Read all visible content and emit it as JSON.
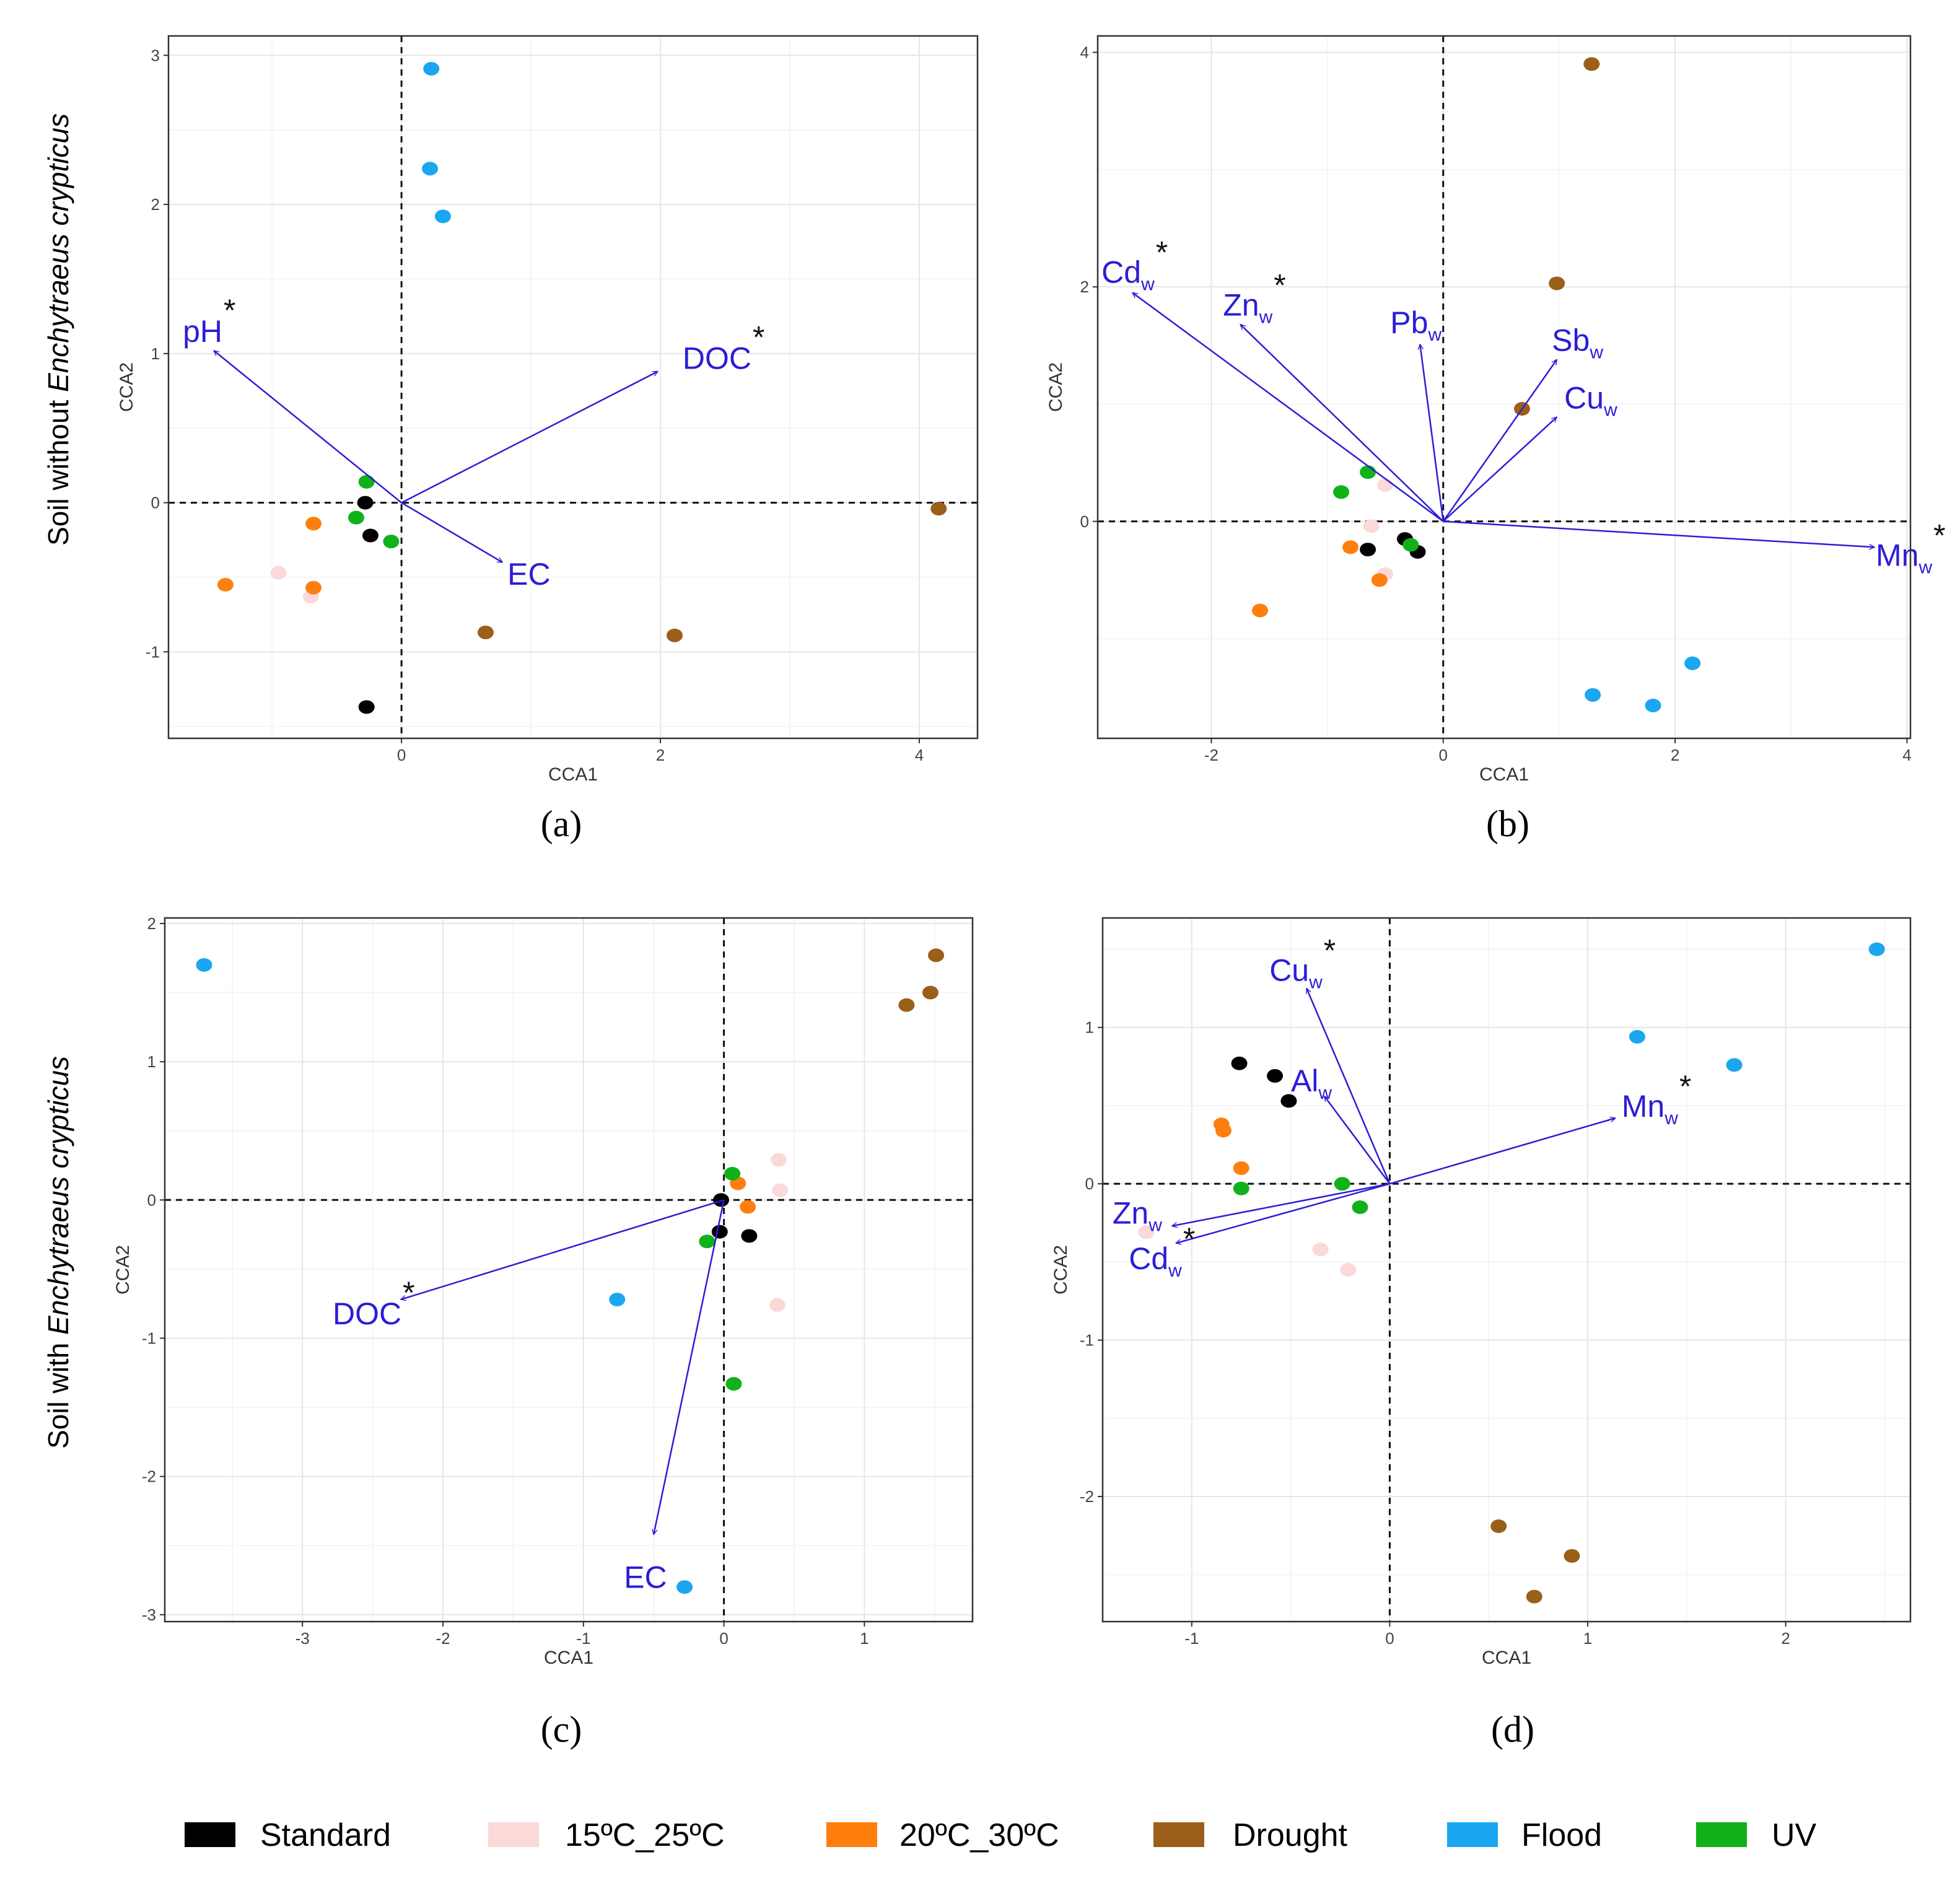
{
  "row_labels": {
    "top": {
      "prefix": "Soil without ",
      "species": "Enchytraeus crypticus"
    },
    "bottom": {
      "prefix": "Soil with ",
      "species": "Enchytraeus crypticus"
    }
  },
  "legend": [
    {
      "label": "Standard",
      "color": "#000000"
    },
    {
      "label": "15ºC_25ºC",
      "color": "#fbd9d9"
    },
    {
      "label": "20ºC_30ºC",
      "color": "#ff7f0e"
    },
    {
      "label": "Drought",
      "color": "#9b5f1a"
    },
    {
      "label": "Flood",
      "color": "#1aa7f0"
    },
    {
      "label": "UV",
      "color": "#11b11a"
    }
  ],
  "chart_data": [
    {
      "panel": "(a)",
      "type": "scatter",
      "title": "",
      "xlabel": "CCA1",
      "ylabel": "CCA2",
      "xlim": [
        -1.8,
        4.45
      ],
      "ylim": [
        -1.58,
        3.13
      ],
      "xticks": [
        "0",
        "2",
        "4"
      ],
      "xtick_values": [
        0,
        2,
        4
      ],
      "yticks": [
        "-1",
        "0",
        "1",
        "2",
        "3"
      ],
      "ytick_values": [
        -1,
        0,
        1,
        2,
        3
      ],
      "points": [
        {
          "group": "Standard",
          "x": -0.28,
          "y": 0.0
        },
        {
          "group": "Standard",
          "x": -0.24,
          "y": -0.22
        },
        {
          "group": "Standard",
          "x": -0.27,
          "y": -1.37
        },
        {
          "group": "15ºC_25ºC",
          "x": -0.95,
          "y": -0.47
        },
        {
          "group": "15ºC_25ºC",
          "x": -0.7,
          "y": -0.63
        },
        {
          "group": "20ºC_30ºC",
          "x": -1.36,
          "y": -0.55
        },
        {
          "group": "20ºC_30ºC",
          "x": -0.68,
          "y": -0.57
        },
        {
          "group": "20ºC_30ºC",
          "x": -0.68,
          "y": -0.14
        },
        {
          "group": "Drought",
          "x": 0.65,
          "y": -0.87
        },
        {
          "group": "Drought",
          "x": 2.11,
          "y": -0.89
        },
        {
          "group": "Drought",
          "x": 4.15,
          "y": -0.04
        },
        {
          "group": "Flood",
          "x": 0.23,
          "y": 2.91
        },
        {
          "group": "Flood",
          "x": 0.22,
          "y": 2.24
        },
        {
          "group": "Flood",
          "x": 0.32,
          "y": 1.92
        },
        {
          "group": "UV",
          "x": -0.27,
          "y": 0.14
        },
        {
          "group": "UV",
          "x": -0.35,
          "y": -0.1
        },
        {
          "group": "UV",
          "x": -0.08,
          "y": -0.26
        }
      ],
      "vectors": [
        {
          "label": "pH",
          "sub": "",
          "star": true,
          "x": -1.45,
          "y": 1.02
        },
        {
          "label": "DOC",
          "sub": "",
          "star": true,
          "x": 1.98,
          "y": 0.88
        },
        {
          "label": "EC",
          "sub": "",
          "star": false,
          "x": 0.78,
          "y": -0.4
        }
      ]
    },
    {
      "panel": "(b)",
      "type": "scatter",
      "title": "",
      "xlabel": "CCA1",
      "ylabel": "CCA2",
      "xlim": [
        -2.98,
        4.03
      ],
      "ylim": [
        -1.85,
        4.14
      ],
      "xticks": [
        "-2",
        "0",
        "2",
        "4"
      ],
      "xtick_values": [
        -2,
        0,
        2,
        4
      ],
      "yticks": [
        "0",
        "2",
        "4"
      ],
      "ytick_values": [
        0,
        2,
        4
      ],
      "points": [
        {
          "group": "Standard",
          "x": -0.65,
          "y": -0.24
        },
        {
          "group": "Standard",
          "x": -0.33,
          "y": -0.15
        },
        {
          "group": "Standard",
          "x": -0.22,
          "y": -0.26
        },
        {
          "group": "15ºC_25ºC",
          "x": -0.62,
          "y": -0.04
        },
        {
          "group": "15ºC_25ºC",
          "x": -0.5,
          "y": -0.45
        },
        {
          "group": "15ºC_25ºC",
          "x": -0.5,
          "y": 0.31
        },
        {
          "group": "20ºC_30ºC",
          "x": -0.8,
          "y": -0.22
        },
        {
          "group": "20ºC_30ºC",
          "x": -0.55,
          "y": -0.5
        },
        {
          "group": "20ºC_30ºC",
          "x": -1.58,
          "y": -0.76
        },
        {
          "group": "Drought",
          "x": 1.28,
          "y": 3.9
        },
        {
          "group": "Drought",
          "x": 0.98,
          "y": 2.03
        },
        {
          "group": "Drought",
          "x": 0.68,
          "y": 0.96
        },
        {
          "group": "Flood",
          "x": 1.29,
          "y": -1.48
        },
        {
          "group": "Flood",
          "x": 1.81,
          "y": -1.57
        },
        {
          "group": "Flood",
          "x": 2.15,
          "y": -1.21
        },
        {
          "group": "UV",
          "x": -0.65,
          "y": 0.42
        },
        {
          "group": "UV",
          "x": -0.88,
          "y": 0.25
        },
        {
          "group": "UV",
          "x": -0.28,
          "y": -0.2
        }
      ],
      "vectors": [
        {
          "label": "Cd",
          "sub": "w",
          "star": true,
          "x": -2.68,
          "y": 1.95
        },
        {
          "label": "Zn",
          "sub": "w",
          "star": true,
          "x": -1.75,
          "y": 1.68
        },
        {
          "label": "Pb",
          "sub": "w",
          "star": false,
          "x": -0.2,
          "y": 1.51
        },
        {
          "label": "Sb",
          "sub": "w",
          "star": false,
          "x": 0.98,
          "y": 1.38
        },
        {
          "label": "Cu",
          "sub": "w",
          "star": false,
          "x": 0.98,
          "y": 0.89
        },
        {
          "label": "Mn",
          "sub": "w",
          "star": true,
          "x": 3.72,
          "y": -0.22
        }
      ]
    },
    {
      "panel": "(c)",
      "type": "scatter",
      "title": "",
      "xlabel": "CCA1",
      "ylabel": "CCA2",
      "xlim": [
        -3.98,
        1.77
      ],
      "ylim": [
        -3.05,
        2.04
      ],
      "xticks": [
        "-3",
        "-2",
        "-1",
        "0",
        "1"
      ],
      "xtick_values": [
        -3,
        -2,
        -1,
        0,
        1
      ],
      "yticks": [
        "-3",
        "-2",
        "-1",
        "0",
        "1",
        "2"
      ],
      "ytick_values": [
        -3,
        -2,
        -1,
        0,
        1,
        2
      ],
      "points": [
        {
          "group": "Standard",
          "x": -0.02,
          "y": 0.0
        },
        {
          "group": "Standard",
          "x": -0.03,
          "y": -0.23
        },
        {
          "group": "Standard",
          "x": 0.18,
          "y": -0.26
        },
        {
          "group": "15ºC_25ºC",
          "x": 0.39,
          "y": 0.29
        },
        {
          "group": "15ºC_25ºC",
          "x": 0.4,
          "y": 0.07
        },
        {
          "group": "15ºC_25ºC",
          "x": 0.38,
          "y": -0.76
        },
        {
          "group": "20ºC_30ºC",
          "x": 0.1,
          "y": 0.12
        },
        {
          "group": "20ºC_30ºC",
          "x": 0.17,
          "y": -0.05
        },
        {
          "group": "Drought",
          "x": 1.51,
          "y": 1.77
        },
        {
          "group": "Drought",
          "x": 1.47,
          "y": 1.5
        },
        {
          "group": "Drought",
          "x": 1.3,
          "y": 1.41
        },
        {
          "group": "Flood",
          "x": -3.7,
          "y": 1.7
        },
        {
          "group": "Flood",
          "x": -0.76,
          "y": -0.72
        },
        {
          "group": "Flood",
          "x": -0.28,
          "y": -2.8
        },
        {
          "group": "UV",
          "x": 0.06,
          "y": 0.19
        },
        {
          "group": "UV",
          "x": -0.12,
          "y": -0.3
        },
        {
          "group": "UV",
          "x": 0.07,
          "y": -1.33
        }
      ],
      "vectors": [
        {
          "label": "DOC",
          "sub": "",
          "star": true,
          "x": -2.3,
          "y": -0.72
        },
        {
          "label": "EC",
          "sub": "",
          "star": false,
          "x": -0.5,
          "y": -2.42
        }
      ]
    },
    {
      "panel": "(d)",
      "type": "scatter",
      "title": "",
      "xlabel": "CCA1",
      "ylabel": "CCA2",
      "xlim": [
        -1.45,
        2.63
      ],
      "ylim": [
        -2.8,
        1.7
      ],
      "xticks": [
        "-1",
        "0",
        "1",
        "2"
      ],
      "xtick_values": [
        -1,
        0,
        1,
        2
      ],
      "yticks": [
        "-2",
        "-1",
        "0",
        "1"
      ],
      "ytick_values": [
        -2,
        -1,
        0,
        1
      ],
      "points": [
        {
          "group": "Standard",
          "x": -0.76,
          "y": 0.77
        },
        {
          "group": "Standard",
          "x": -0.58,
          "y": 0.69
        },
        {
          "group": "Standard",
          "x": -0.51,
          "y": 0.53
        },
        {
          "group": "15ºC_25ºC",
          "x": -1.23,
          "y": -0.31
        },
        {
          "group": "15ºC_25ºC",
          "x": -0.35,
          "y": -0.42
        },
        {
          "group": "15ºC_25ºC",
          "x": -0.21,
          "y": -0.55
        },
        {
          "group": "20ºC_30ºC",
          "x": -0.85,
          "y": 0.38
        },
        {
          "group": "20ºC_30ºC",
          "x": -0.84,
          "y": 0.34
        },
        {
          "group": "20ºC_30ºC",
          "x": -0.75,
          "y": 0.1
        },
        {
          "group": "Drought",
          "x": 0.55,
          "y": -2.19
        },
        {
          "group": "Drought",
          "x": 0.92,
          "y": -2.38
        },
        {
          "group": "Drought",
          "x": 0.73,
          "y": -2.64
        },
        {
          "group": "Flood",
          "x": 2.46,
          "y": 1.5
        },
        {
          "group": "Flood",
          "x": 1.25,
          "y": 0.94
        },
        {
          "group": "Flood",
          "x": 1.74,
          "y": 0.76
        },
        {
          "group": "UV",
          "x": -0.75,
          "y": -0.03
        },
        {
          "group": "UV",
          "x": -0.24,
          "y": 0.0
        },
        {
          "group": "UV",
          "x": -0.15,
          "y": -0.15
        }
      ],
      "vectors": [
        {
          "label": "Cu",
          "sub": "w",
          "star": true,
          "x": -0.42,
          "y": 1.25
        },
        {
          "label": "Al",
          "sub": "w",
          "star": false,
          "x": -0.33,
          "y": 0.56
        },
        {
          "label": "Mn",
          "sub": "w",
          "star": true,
          "x": 1.14,
          "y": 0.42
        },
        {
          "label": "Zn",
          "sub": "w",
          "star": false,
          "x": -1.1,
          "y": -0.27
        },
        {
          "label": "Cd",
          "sub": "w",
          "star": true,
          "x": -1.08,
          "y": -0.38
        }
      ]
    }
  ]
}
